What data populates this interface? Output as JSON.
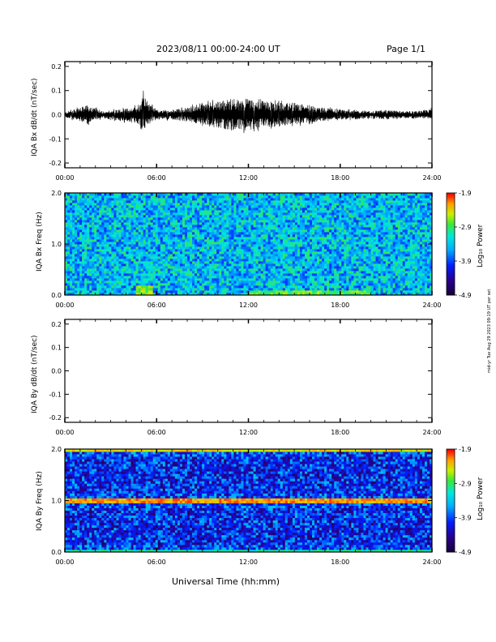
{
  "header": {
    "title": "2023/08/11  00:00-24:00 UT",
    "page": "Page 1/1"
  },
  "footer": {
    "xlabel": "Universal Time (hh:mm)"
  },
  "side_note": "mid-yr Tue Aug 29 2023 09:19 UT per set",
  "chart_data": [
    {
      "type": "line",
      "ylabel": "IQA Bx dB/dt (nT/sec)",
      "x_ticks": [
        "00:00",
        "06:00",
        "12:00",
        "18:00",
        "24:00"
      ],
      "y_ticks": [
        "0.2",
        "0.1",
        "0.0",
        "-0.1",
        "-0.2"
      ],
      "xlim": [
        0,
        24
      ],
      "ylim": [
        -0.22,
        0.22
      ],
      "series": [
        {
          "x": [
            0,
            1.5,
            1.7,
            2.5,
            4.5,
            4.9,
            5.1,
            5.3,
            5.5,
            6.0,
            7.0,
            8.0,
            8.5,
            9.0,
            9.5,
            10.0,
            10.5,
            11.0,
            11.5,
            12.0,
            12.3,
            12.6,
            13.0,
            13.5,
            14.0,
            14.5,
            15.0,
            15.5,
            16.0,
            16.5,
            17.0,
            17.5,
            18.0,
            19.0,
            20.0,
            21.0,
            22.0,
            23.0,
            24.0
          ],
          "envelope_pos": [
            0.01,
            0.04,
            0.035,
            0.015,
            0.03,
            0.05,
            0.09,
            0.07,
            0.05,
            0.02,
            0.02,
            0.03,
            0.04,
            0.05,
            0.05,
            0.06,
            0.06,
            0.07,
            0.06,
            0.07,
            0.06,
            0.07,
            0.06,
            0.055,
            0.05,
            0.05,
            0.05,
            0.045,
            0.04,
            0.03,
            0.03,
            0.025,
            0.02,
            0.02,
            0.015,
            0.02,
            0.015,
            0.015,
            0.025
          ],
          "envelope_neg": [
            -0.01,
            -0.04,
            -0.03,
            -0.015,
            -0.035,
            -0.06,
            -0.075,
            -0.06,
            -0.04,
            -0.02,
            -0.02,
            -0.03,
            -0.035,
            -0.04,
            -0.05,
            -0.06,
            -0.06,
            -0.07,
            -0.06,
            -0.075,
            -0.06,
            -0.06,
            -0.055,
            -0.05,
            -0.05,
            -0.045,
            -0.04,
            -0.04,
            -0.035,
            -0.03,
            -0.025,
            -0.02,
            -0.02,
            -0.02,
            -0.015,
            -0.02,
            -0.015,
            -0.015,
            -0.02
          ]
        }
      ]
    },
    {
      "type": "heatmap",
      "ylabel": "IQA Bx Freq (Hz)",
      "x_ticks": [
        "00:00",
        "06:00",
        "12:00",
        "18:00",
        "24:00"
      ],
      "y_ticks": [
        "2.0",
        "1.0",
        "0.0"
      ],
      "xlim": [
        0,
        24
      ],
      "ylim": [
        0,
        2.0
      ],
      "colorbar": {
        "label": "Log₁₀ Power",
        "ticks": [
          "-1.9",
          "-2.9",
          "-3.9",
          "-4.9"
        ],
        "range": [
          -4.9,
          -1.9
        ]
      },
      "base_level": -3.4,
      "enhancements": [
        {
          "t_start": 4.6,
          "t_end": 5.8,
          "f_max": 0.2,
          "level": -2.6
        },
        {
          "t_start": 12.0,
          "t_end": 20.0,
          "f_max": 0.08,
          "level": -2.8
        }
      ]
    },
    {
      "type": "line",
      "ylabel": "IQA By dB/dt (nT/sec)",
      "x_ticks": [
        "00:00",
        "06:00",
        "12:00",
        "18:00",
        "24:00"
      ],
      "y_ticks": [
        "0.2",
        "0.1",
        "0.0",
        "-0.1",
        "-0.2"
      ],
      "xlim": [
        0,
        24
      ],
      "ylim": [
        -0.22,
        0.22
      ],
      "series": []
    },
    {
      "type": "heatmap",
      "ylabel": "IQA By Freq (Hz)",
      "x_ticks": [
        "00:00",
        "06:00",
        "12:00",
        "18:00",
        "24:00"
      ],
      "y_ticks": [
        "2.0",
        "1.0",
        "0.0"
      ],
      "xlim": [
        0,
        24
      ],
      "ylim": [
        0,
        2.0
      ],
      "colorbar": {
        "label": "Log₁₀ Power",
        "ticks": [
          "-1.9",
          "-2.9",
          "-3.9",
          "-4.9"
        ],
        "range": [
          -4.9,
          -1.9
        ]
      },
      "base_level": -3.9,
      "bands": [
        {
          "f": 1.0,
          "width": 0.03,
          "level": -2.2
        },
        {
          "f": 2.0,
          "width": 0.03,
          "level": -2.4
        },
        {
          "f": 0.0,
          "width": 0.05,
          "level": -3.0
        }
      ]
    }
  ]
}
